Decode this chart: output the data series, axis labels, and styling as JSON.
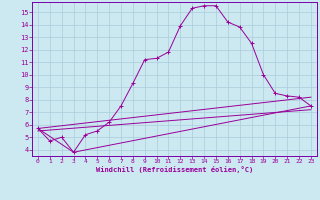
{
  "xlabel": "Windchill (Refroidissement éolien,°C)",
  "bg_color": "#cce8f0",
  "grid_color": "#aaccdd",
  "line_color": "#990099",
  "spine_color": "#7700aa",
  "xlim": [
    -0.5,
    23.5
  ],
  "ylim": [
    3.5,
    15.8
  ],
  "xticks": [
    0,
    1,
    2,
    3,
    4,
    5,
    6,
    7,
    8,
    9,
    10,
    11,
    12,
    13,
    14,
    15,
    16,
    17,
    18,
    19,
    20,
    21,
    22,
    23
  ],
  "yticks": [
    4,
    5,
    6,
    7,
    8,
    9,
    10,
    11,
    12,
    13,
    14,
    15
  ],
  "line1_x": [
    0,
    1,
    2,
    3,
    4,
    5,
    6,
    7,
    8,
    9,
    10,
    11,
    12,
    13,
    14,
    15,
    16,
    17,
    18,
    19,
    20,
    21,
    22,
    23
  ],
  "line1_y": [
    5.7,
    4.7,
    5.0,
    3.8,
    5.2,
    5.5,
    6.2,
    7.5,
    9.3,
    11.2,
    11.3,
    11.8,
    13.9,
    15.3,
    15.5,
    15.5,
    14.2,
    13.8,
    12.5,
    10.0,
    8.5,
    8.3,
    8.2,
    7.5
  ],
  "line2_x": [
    0,
    3,
    23
  ],
  "line2_y": [
    5.7,
    3.8,
    7.5
  ],
  "line3_x": [
    0,
    23
  ],
  "line3_y": [
    5.7,
    8.2
  ],
  "line4_x": [
    0,
    23
  ],
  "line4_y": [
    5.5,
    7.2
  ]
}
